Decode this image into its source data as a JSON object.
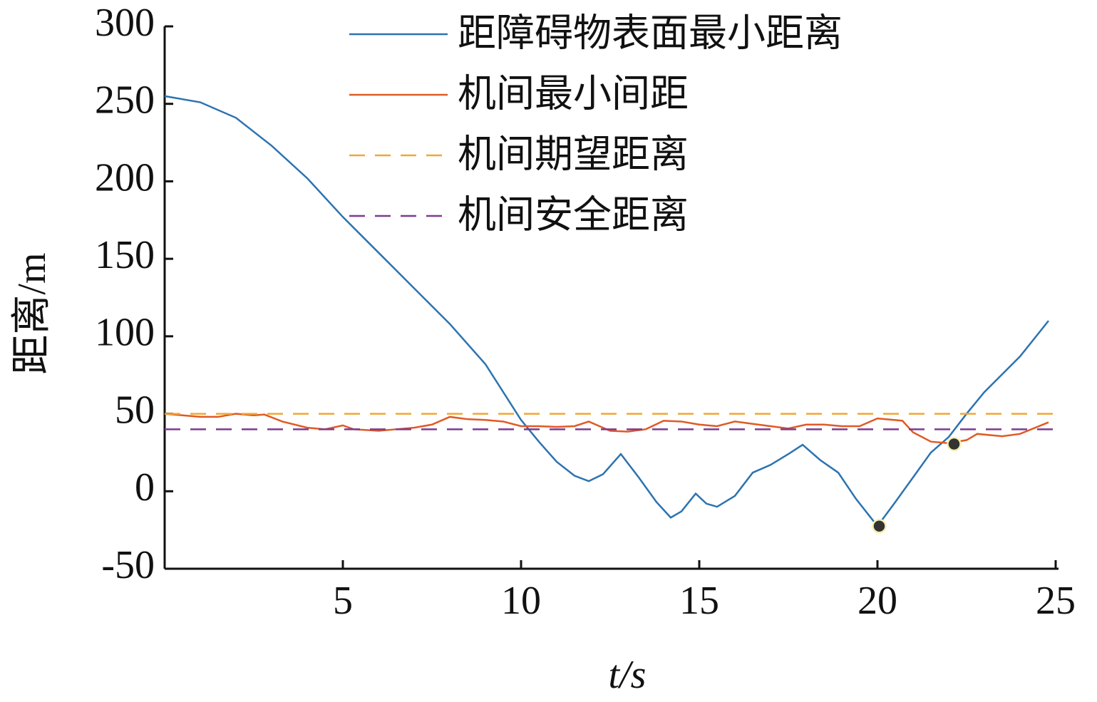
{
  "chart_data": {
    "type": "line",
    "xlabel": "t/s",
    "ylabel": "距离/m",
    "xlim": [
      0,
      25
    ],
    "ylim": [
      -50,
      300
    ],
    "xticks": [
      5,
      10,
      15,
      20,
      25
    ],
    "yticks": [
      -50,
      0,
      50,
      100,
      150,
      200,
      250,
      300
    ],
    "legend": "upper right",
    "series": [
      {
        "name": "距障碍物表面最小距离",
        "color": "#2c73b0",
        "dash": false,
        "x": [
          0,
          1,
          2,
          3,
          4,
          5,
          6,
          7,
          8,
          9,
          10,
          10.5,
          11,
          11.5,
          11.9,
          12.3,
          12.8,
          13.3,
          13.8,
          14.2,
          14.5,
          14.9,
          15.2,
          15.5,
          16,
          16.5,
          17,
          17.5,
          17.9,
          18.4,
          18.9,
          19.4,
          20,
          20.5,
          21,
          21.5,
          22,
          22.5,
          23,
          24,
          24.8
        ],
        "values": [
          255,
          251,
          241,
          223,
          202,
          177,
          154,
          131,
          108,
          82,
          46,
          32,
          19,
          10,
          6.5,
          11,
          24,
          9,
          -7,
          -17,
          -13,
          -1.5,
          -8,
          -10,
          -3,
          12,
          17,
          24,
          30,
          20,
          12,
          -5,
          -22.5,
          -7,
          9,
          25,
          35,
          50,
          64,
          87,
          110
        ]
      },
      {
        "name": "机间最小间距",
        "color": "#e05a24",
        "dash": false,
        "x": [
          0,
          0.5,
          1,
          1.5,
          2,
          2.5,
          2.8,
          3.3,
          4,
          4.5,
          5,
          5.3,
          6,
          6.5,
          7,
          7.5,
          8,
          8.5,
          9,
          9.5,
          10,
          10.5,
          11,
          11.5,
          11.9,
          12.5,
          13,
          13.5,
          14,
          14.5,
          15,
          15.5,
          16,
          16.5,
          17,
          17.5,
          18,
          18.5,
          19,
          19.5,
          20,
          20.7,
          21,
          21.5,
          22,
          22.5,
          22.8,
          23.5,
          24,
          24.8
        ],
        "values": [
          50,
          49,
          48,
          48,
          50,
          49,
          49.5,
          45,
          41,
          40,
          42.5,
          40,
          39,
          40,
          41,
          43,
          48,
          46.5,
          46,
          45,
          42,
          42,
          41.5,
          42,
          45,
          39,
          38.5,
          40,
          45.5,
          45,
          43,
          42,
          45,
          43.5,
          42,
          40.5,
          43,
          43,
          42,
          42,
          47,
          45.5,
          38,
          32,
          31,
          33,
          37,
          35.5,
          37,
          44.5
        ]
      },
      {
        "name": "机间期望距离",
        "color": "#f0a839",
        "dash": true,
        "x": [
          0,
          25
        ],
        "values": [
          50,
          50
        ]
      },
      {
        "name": "机间安全距离",
        "color": "#7e3a90",
        "dash": true,
        "x": [
          0,
          25
        ],
        "values": [
          40,
          40
        ]
      }
    ],
    "points": {
      "color": "#333333",
      "edge": "#f5f0b0",
      "x": [
        20.05,
        22.15
      ],
      "values": [
        -22.5,
        30.5
      ]
    }
  }
}
